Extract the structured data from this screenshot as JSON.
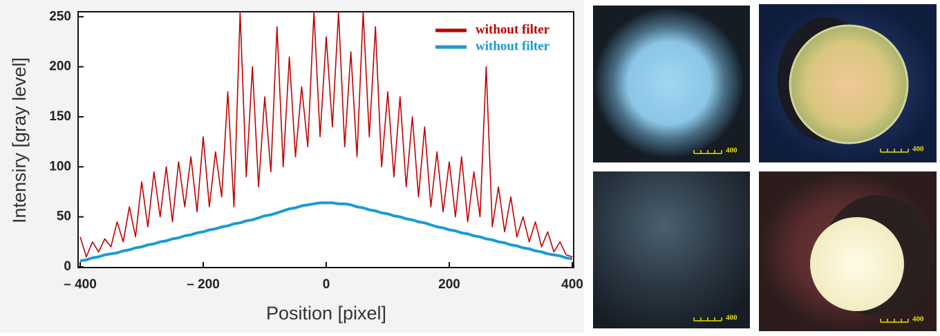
{
  "chart_data": {
    "type": "line",
    "xlabel": "Position [pixel]",
    "ylabel": "Intensiry [gray level]",
    "x": [
      -400,
      -390,
      -380,
      -370,
      -360,
      -350,
      -340,
      -330,
      -320,
      -310,
      -300,
      -290,
      -280,
      -270,
      -260,
      -250,
      -240,
      -230,
      -220,
      -210,
      -200,
      -190,
      -180,
      -170,
      -160,
      -150,
      -140,
      -130,
      -120,
      -110,
      -100,
      -90,
      -80,
      -70,
      -60,
      -50,
      -40,
      -30,
      -20,
      -10,
      0,
      10,
      20,
      30,
      40,
      50,
      60,
      70,
      80,
      90,
      100,
      110,
      120,
      130,
      140,
      150,
      160,
      170,
      180,
      190,
      200,
      210,
      220,
      230,
      240,
      250,
      260,
      270,
      280,
      290,
      300,
      310,
      320,
      330,
      340,
      350,
      360,
      370,
      380,
      390,
      400
    ],
    "series": [
      {
        "name": "without filter",
        "color": "#c00000",
        "values": [
          30,
          10,
          25,
          15,
          28,
          20,
          45,
          25,
          60,
          30,
          85,
          40,
          95,
          50,
          100,
          45,
          105,
          60,
          110,
          55,
          130,
          60,
          115,
          70,
          175,
          60,
          255,
          90,
          200,
          80,
          170,
          95,
          240,
          100,
          210,
          110,
          180,
          120,
          255,
          130,
          230,
          140,
          255,
          120,
          215,
          110,
          255,
          130,
          240,
          100,
          175,
          90,
          170,
          80,
          150,
          70,
          140,
          60,
          115,
          55,
          105,
          50,
          110,
          45,
          95,
          50,
          200,
          40,
          80,
          35,
          70,
          30,
          50,
          25,
          45,
          20,
          35,
          15,
          25,
          12,
          10
        ]
      },
      {
        "name": "without filter",
        "color": "#1a9ad6",
        "values": [
          6,
          7,
          9,
          10,
          12,
          13,
          14,
          16,
          17,
          19,
          20,
          22,
          23,
          25,
          26,
          28,
          29,
          31,
          32,
          34,
          35,
          37,
          38,
          40,
          41,
          43,
          44,
          46,
          47,
          49,
          51,
          52,
          54,
          56,
          58,
          59,
          61,
          62,
          63,
          64,
          64,
          64,
          63,
          63,
          62,
          60,
          59,
          57,
          56,
          54,
          53,
          51,
          50,
          48,
          47,
          45,
          44,
          42,
          40,
          39,
          37,
          36,
          34,
          33,
          31,
          30,
          28,
          27,
          25,
          24,
          22,
          21,
          19,
          18,
          16,
          15,
          13,
          12,
          11,
          9,
          8
        ]
      }
    ],
    "xlim": [
      -400,
      400
    ],
    "ylim": [
      0,
      255
    ],
    "xticks": [
      {
        "value": -400,
        "label": "– 400"
      },
      {
        "value": -200,
        "label": "– 200"
      },
      0,
      200,
      400
    ],
    "yticks": [
      0,
      50,
      100,
      150,
      200,
      250
    ],
    "legend": "upper right"
  },
  "panels": [
    {
      "scale_label": "400"
    },
    {
      "scale_label": "400"
    },
    {
      "scale_label": "400"
    },
    {
      "scale_label": "400"
    }
  ]
}
